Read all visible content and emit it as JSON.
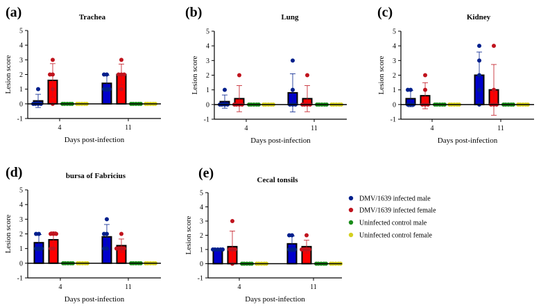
{
  "chart_data": [
    {
      "type": "bar",
      "panel_label": "(a)",
      "title": "Trachea",
      "xlabel": "Days post-infection",
      "ylabel": "Lesion score",
      "ylim": [
        -1,
        5
      ],
      "yticks": [
        "-1",
        "0",
        "1",
        "2",
        "3",
        "4",
        "5"
      ],
      "categories": [
        "4",
        "11"
      ],
      "series": [
        {
          "name": "DMV/1639 infected male",
          "values": [
            0.2,
            1.4
          ],
          "sd": [
            0.45,
            0.55
          ],
          "points": [
            [
              1,
              0,
              0,
              0,
              0
            ],
            [
              2,
              2,
              1,
              1,
              1
            ]
          ]
        },
        {
          "name": "DMV/1639 infected female",
          "values": [
            1.6,
            2.0
          ],
          "sd": [
            1.14,
            0.71
          ],
          "points": [
            [
              3,
              2,
              2,
              1,
              0
            ],
            [
              3,
              2,
              2,
              2,
              1
            ]
          ]
        },
        {
          "name": "Uninfected control male",
          "values": [
            0,
            0
          ],
          "sd": [
            0,
            0
          ],
          "points": [
            [
              0,
              0,
              0,
              0,
              0
            ],
            [
              0,
              0,
              0,
              0,
              0
            ]
          ]
        },
        {
          "name": "Uninfected control female",
          "values": [
            0,
            0
          ],
          "sd": [
            0,
            0
          ],
          "points": [
            [
              0,
              0,
              0,
              0,
              0
            ],
            [
              0,
              0,
              0,
              0,
              0
            ]
          ]
        }
      ]
    },
    {
      "type": "bar",
      "panel_label": "(b)",
      "title": "Lung",
      "xlabel": "Days post-infection",
      "ylabel": "Lesion score",
      "ylim": [
        -1,
        5
      ],
      "yticks": [
        "-1",
        "0",
        "1",
        "2",
        "3",
        "4",
        "5"
      ],
      "categories": [
        "4",
        "11"
      ],
      "series": [
        {
          "name": "DMV/1639 infected male",
          "values": [
            0.2,
            0.8
          ],
          "sd": [
            0.45,
            1.3
          ],
          "points": [
            [
              1,
              0,
              0,
              0,
              0
            ],
            [
              3,
              1,
              0,
              0,
              0
            ]
          ]
        },
        {
          "name": "DMV/1639 infected female",
          "values": [
            0.4,
            0.4
          ],
          "sd": [
            0.89,
            0.89
          ],
          "points": [
            [
              2,
              0,
              0,
              0,
              0
            ],
            [
              2,
              0,
              0,
              0,
              0
            ]
          ]
        },
        {
          "name": "Uninfected control male",
          "values": [
            0,
            0
          ],
          "sd": [
            0,
            0
          ],
          "points": [
            [
              0,
              0,
              0,
              0,
              0
            ],
            [
              0,
              0,
              0,
              0,
              0
            ]
          ]
        },
        {
          "name": "Uninfected control female",
          "values": [
            0,
            0
          ],
          "sd": [
            0,
            0
          ],
          "points": [
            [
              0,
              0,
              0,
              0,
              0
            ],
            [
              0,
              0,
              0,
              0,
              0
            ]
          ]
        }
      ]
    },
    {
      "type": "bar",
      "panel_label": "(c)",
      "title": "Kidney",
      "xlabel": "Days post-infection",
      "ylabel": "Lesion score",
      "ylim": [
        -1,
        5
      ],
      "yticks": [
        "-1",
        "0",
        "1",
        "2",
        "3",
        "4",
        "5"
      ],
      "categories": [
        "4",
        "11"
      ],
      "series": [
        {
          "name": "DMV/1639 infected male",
          "values": [
            0.4,
            2.0
          ],
          "sd": [
            0.55,
            1.58
          ],
          "points": [
            [
              1,
              1,
              0,
              0,
              0
            ],
            [
              4,
              3,
              2,
              1,
              0
            ]
          ]
        },
        {
          "name": "DMV/1639 infected female",
          "values": [
            0.6,
            1.0
          ],
          "sd": [
            0.89,
            1.73
          ],
          "points": [
            [
              2,
              1,
              0,
              0,
              0
            ],
            [
              4,
              1,
              0,
              0,
              0
            ]
          ]
        },
        {
          "name": "Uninfected control male",
          "values": [
            0,
            0
          ],
          "sd": [
            0,
            0
          ],
          "points": [
            [
              0,
              0,
              0,
              0,
              0
            ],
            [
              0,
              0,
              0,
              0,
              0
            ]
          ]
        },
        {
          "name": "Uninfected control female",
          "values": [
            0,
            0
          ],
          "sd": [
            0,
            0
          ],
          "points": [
            [
              0,
              0,
              0,
              0,
              0
            ],
            [
              0,
              0,
              0,
              0,
              0
            ]
          ]
        }
      ]
    },
    {
      "type": "bar",
      "panel_label": "(d)",
      "title": "bursa of Fabricius",
      "xlabel": "Days post-infection",
      "ylabel": "Lesion score",
      "ylim": [
        -1,
        5
      ],
      "yticks": [
        "-1",
        "0",
        "1",
        "2",
        "3",
        "4",
        "5"
      ],
      "categories": [
        "4",
        "11"
      ],
      "series": [
        {
          "name": "DMV/1639 infected male",
          "values": [
            1.4,
            1.8
          ],
          "sd": [
            0.55,
            0.84
          ],
          "points": [
            [
              2,
              2,
              1,
              1,
              1
            ],
            [
              3,
              2,
              2,
              1,
              1
            ]
          ]
        },
        {
          "name": "DMV/1639 infected female",
          "values": [
            1.6,
            1.2
          ],
          "sd": [
            0.55,
            0.45
          ],
          "points": [
            [
              2,
              2,
              2,
              1,
              1
            ],
            [
              2,
              1,
              1,
              1,
              1
            ]
          ]
        },
        {
          "name": "Uninfected control male",
          "values": [
            0,
            0
          ],
          "sd": [
            0,
            0
          ],
          "points": [
            [
              0,
              0,
              0,
              0,
              0
            ],
            [
              0,
              0,
              0,
              0,
              0
            ]
          ]
        },
        {
          "name": "Uninfected control female",
          "values": [
            0,
            0
          ],
          "sd": [
            0,
            0
          ],
          "points": [
            [
              0,
              0,
              0,
              0,
              0
            ],
            [
              0,
              0,
              0,
              0,
              0
            ]
          ]
        }
      ]
    },
    {
      "type": "bar",
      "panel_label": "(e)",
      "title": "Cecal tonsils",
      "xlabel": "Days post-infection",
      "ylabel": "Lesion score",
      "ylim": [
        -1,
        5
      ],
      "yticks": [
        "-1",
        "0",
        "1",
        "2",
        "3",
        "4",
        "5"
      ],
      "categories": [
        "4",
        "11"
      ],
      "series": [
        {
          "name": "DMV/1639 infected male",
          "values": [
            1.0,
            1.4
          ],
          "sd": [
            0,
            0.55
          ],
          "points": [
            [
              1,
              1,
              1,
              1,
              1
            ],
            [
              2,
              2,
              1,
              1,
              1
            ]
          ]
        },
        {
          "name": "DMV/1639 infected female",
          "values": [
            1.2,
            1.2
          ],
          "sd": [
            1.1,
            0.45
          ],
          "points": [
            [
              3,
              1,
              1,
              1,
              0
            ],
            [
              2,
              1,
              1,
              1,
              1
            ]
          ]
        },
        {
          "name": "Uninfected control male",
          "values": [
            0,
            0
          ],
          "sd": [
            0,
            0
          ],
          "points": [
            [
              0,
              0,
              0,
              0,
              0
            ],
            [
              0,
              0,
              0,
              0,
              0
            ]
          ]
        },
        {
          "name": "Uninfected control female",
          "values": [
            0,
            0
          ],
          "sd": [
            0,
            0
          ],
          "points": [
            [
              0,
              0,
              0,
              0,
              0
            ],
            [
              0,
              0,
              0,
              0,
              0
            ]
          ]
        }
      ]
    }
  ],
  "legend": {
    "placement": "right",
    "items": [
      {
        "label": "DMV/1639 infected male",
        "color": "#0000cc",
        "dot": "#001f8c"
      },
      {
        "label": "DMV/1639 infected female",
        "color": "#ff0000",
        "dot": "#c0141e"
      },
      {
        "label": "Uninfected control male",
        "color": "#1a8c1a",
        "dot": "#1a8c1a"
      },
      {
        "label": "Uninfected control female",
        "color": "#d4d020",
        "dot": "#d4d020"
      }
    ]
  }
}
